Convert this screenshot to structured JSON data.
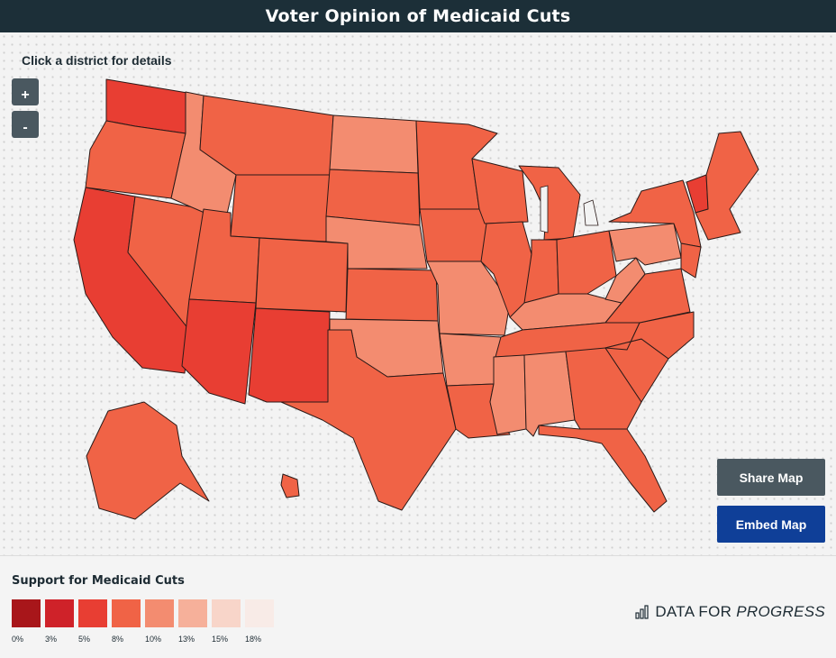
{
  "header": {
    "title": "Voter Opinion of Medicaid Cuts"
  },
  "map": {
    "hint": "Click a district for details",
    "zoom_in_label": "+",
    "zoom_out_label": "-",
    "regions": [
      {
        "name": "washington",
        "level": 2
      },
      {
        "name": "oregon",
        "level": 3
      },
      {
        "name": "california",
        "level": 2
      },
      {
        "name": "nevada",
        "level": 3
      },
      {
        "name": "idaho",
        "level": 4
      },
      {
        "name": "montana",
        "level": 3
      },
      {
        "name": "wyoming",
        "level": 3
      },
      {
        "name": "utah",
        "level": 3
      },
      {
        "name": "arizona",
        "level": 2
      },
      {
        "name": "colorado",
        "level": 3
      },
      {
        "name": "new-mexico",
        "level": 2
      },
      {
        "name": "north-dakota",
        "level": 4
      },
      {
        "name": "south-dakota",
        "level": 3
      },
      {
        "name": "nebraska",
        "level": 4
      },
      {
        "name": "kansas",
        "level": 3
      },
      {
        "name": "oklahoma",
        "level": 4
      },
      {
        "name": "texas",
        "level": 3
      },
      {
        "name": "minnesota",
        "level": 3
      },
      {
        "name": "iowa",
        "level": 3
      },
      {
        "name": "missouri",
        "level": 4
      },
      {
        "name": "arkansas",
        "level": 4
      },
      {
        "name": "louisiana",
        "level": 3
      },
      {
        "name": "wisconsin",
        "level": 3
      },
      {
        "name": "illinois",
        "level": 3
      },
      {
        "name": "michigan",
        "level": 3
      },
      {
        "name": "indiana",
        "level": 3
      },
      {
        "name": "ohio",
        "level": 3
      },
      {
        "name": "kentucky",
        "level": 4
      },
      {
        "name": "tennessee",
        "level": 3
      },
      {
        "name": "mississippi",
        "level": 4
      },
      {
        "name": "alabama",
        "level": 4
      },
      {
        "name": "georgia",
        "level": 3
      },
      {
        "name": "florida",
        "level": 3
      },
      {
        "name": "south-carolina",
        "level": 3
      },
      {
        "name": "north-carolina",
        "level": 3
      },
      {
        "name": "virginia",
        "level": 3
      },
      {
        "name": "west-virginia",
        "level": 4
      },
      {
        "name": "pennsylvania",
        "level": 4
      },
      {
        "name": "new-york",
        "level": 3
      },
      {
        "name": "vermont",
        "level": 2
      },
      {
        "name": "new-england",
        "level": 3
      },
      {
        "name": "new-jersey",
        "level": 3
      },
      {
        "name": "alaska",
        "level": 3
      },
      {
        "name": "hawaii",
        "level": 3
      }
    ]
  },
  "buttons": {
    "share_label": "Share Map",
    "embed_label": "Embed Map"
  },
  "legend": {
    "title": "Support for Medicaid Cuts",
    "items": [
      {
        "label": "0%",
        "color": "#a8161a"
      },
      {
        "label": "3%",
        "color": "#cf2229"
      },
      {
        "label": "5%",
        "color": "#e83e33"
      },
      {
        "label": "8%",
        "color": "#f06346"
      },
      {
        "label": "10%",
        "color": "#f38c70"
      },
      {
        "label": "13%",
        "color": "#f6b09a"
      },
      {
        "label": "15%",
        "color": "#f8d5c9"
      },
      {
        "label": "18%",
        "color": "#f8ebe7"
      }
    ]
  },
  "brand": {
    "text_regular": "DATA FOR",
    "text_italic": "PROGRESS",
    "icon": "bar-chart-icon"
  }
}
